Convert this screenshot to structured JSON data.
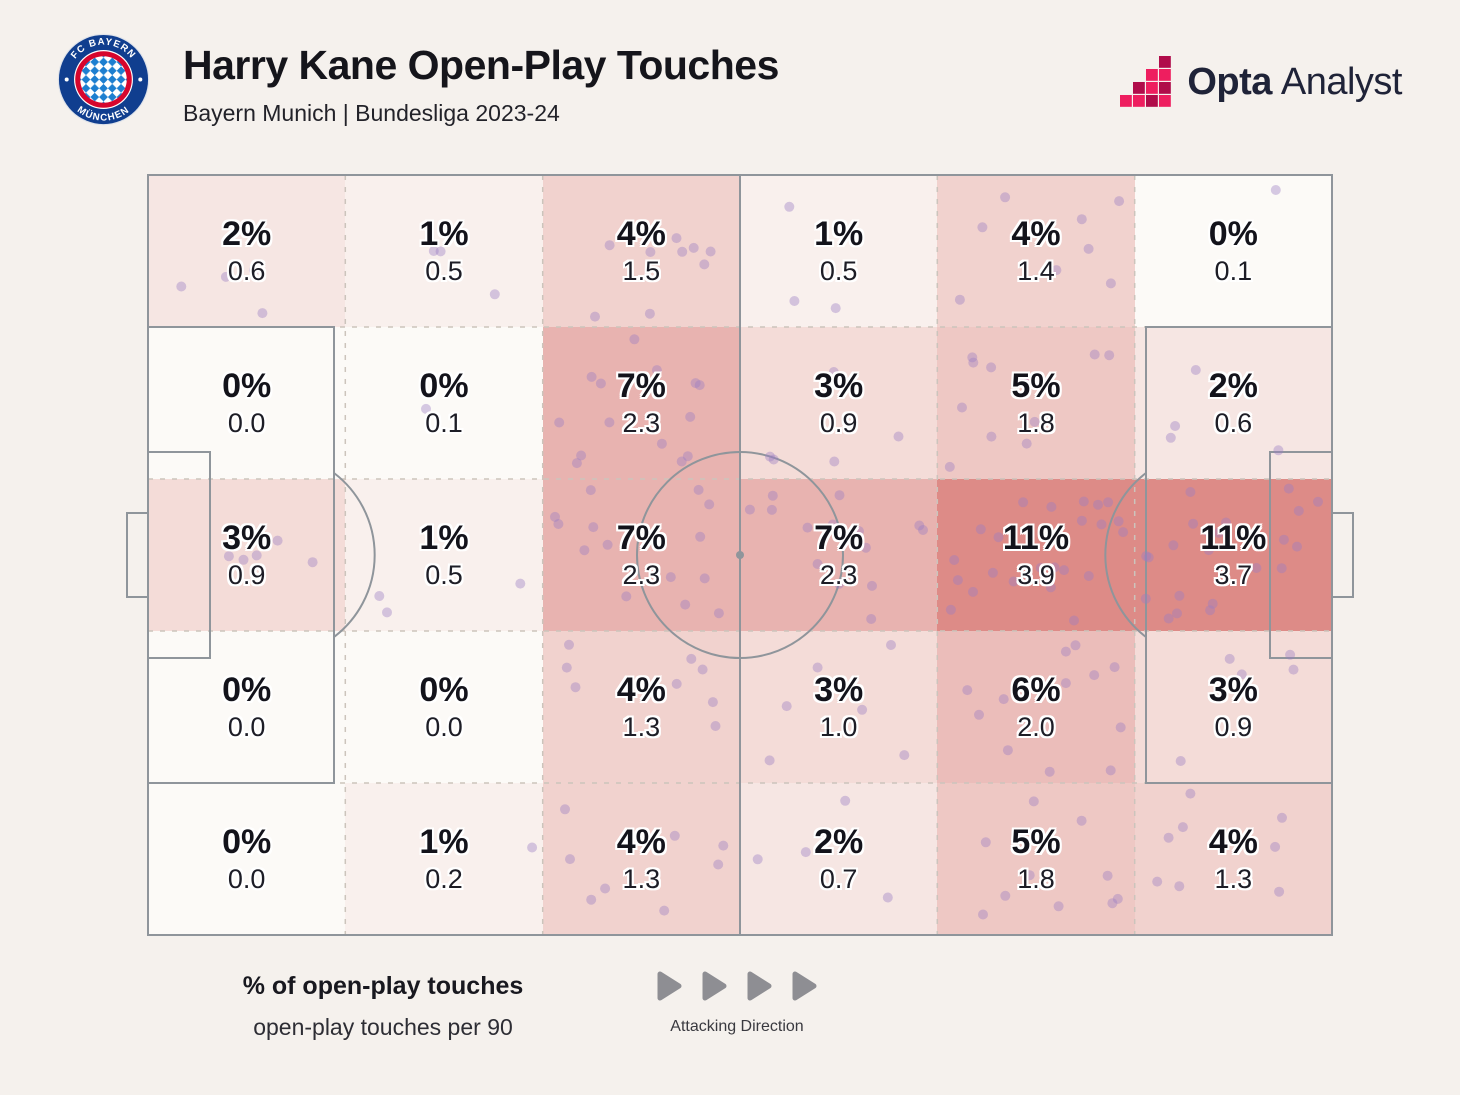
{
  "header": {
    "title": "Harry Kane Open-Play Touches",
    "subtitle": "Bayern Munich | Bundesliga 2023-24",
    "crest_top": "FC BAYERN",
    "crest_bottom": "MÜNCHEN",
    "brand_bold": "Opta",
    "brand_light": "Analyst"
  },
  "legend": {
    "line1": "% of open-play touches",
    "line2": "open-play touches per 90",
    "attacking_direction": "Attacking Direction"
  },
  "brand_colors": {
    "opta_pink": "#ee1e5f",
    "opta_crimson": "#b00c4a",
    "bayern_navy": "#103e8f",
    "bayern_red": "#d6062d",
    "bayern_blue": "#1d7fd0"
  },
  "chart_data": {
    "type": "heatmap",
    "title": "Harry Kane Open-Play Touches",
    "subtitle": "Bayern Munich | Bundesliga 2023-24",
    "orientation": "attacking left-to-right",
    "grid": {
      "columns": 6,
      "rows": 5
    },
    "value_unit": "% of open-play touches",
    "secondary_unit": "open-play touches per 90",
    "color_scale": {
      "min_value": 0,
      "max_value": 11,
      "min_color": "#fcfaf7",
      "max_color": "#dd8b87"
    },
    "dot_color": "#9b7cc4",
    "zones": [
      [
        {
          "pct": 2,
          "pct_label": "2%",
          "per90": 0.6,
          "per90_label": "0.6"
        },
        {
          "pct": 1,
          "pct_label": "1%",
          "per90": 0.5,
          "per90_label": "0.5"
        },
        {
          "pct": 4,
          "pct_label": "4%",
          "per90": 1.5,
          "per90_label": "1.5"
        },
        {
          "pct": 1,
          "pct_label": "1%",
          "per90": 0.5,
          "per90_label": "0.5"
        },
        {
          "pct": 4,
          "pct_label": "4%",
          "per90": 1.4,
          "per90_label": "1.4"
        },
        {
          "pct": 0,
          "pct_label": "0%",
          "per90": 0.1,
          "per90_label": "0.1"
        }
      ],
      [
        {
          "pct": 0,
          "pct_label": "0%",
          "per90": 0.0,
          "per90_label": "0.0"
        },
        {
          "pct": 0,
          "pct_label": "0%",
          "per90": 0.1,
          "per90_label": "0.1"
        },
        {
          "pct": 7,
          "pct_label": "7%",
          "per90": 2.3,
          "per90_label": "2.3"
        },
        {
          "pct": 3,
          "pct_label": "3%",
          "per90": 0.9,
          "per90_label": "0.9"
        },
        {
          "pct": 5,
          "pct_label": "5%",
          "per90": 1.8,
          "per90_label": "1.8"
        },
        {
          "pct": 2,
          "pct_label": "2%",
          "per90": 0.6,
          "per90_label": "0.6"
        }
      ],
      [
        {
          "pct": 3,
          "pct_label": "3%",
          "per90": 0.9,
          "per90_label": "0.9"
        },
        {
          "pct": 1,
          "pct_label": "1%",
          "per90": 0.5,
          "per90_label": "0.5"
        },
        {
          "pct": 7,
          "pct_label": "7%",
          "per90": 2.3,
          "per90_label": "2.3"
        },
        {
          "pct": 7,
          "pct_label": "7%",
          "per90": 2.3,
          "per90_label": "2.3"
        },
        {
          "pct": 11,
          "pct_label": "11%",
          "per90": 3.9,
          "per90_label": "3.9"
        },
        {
          "pct": 11,
          "pct_label": "11%",
          "per90": 3.7,
          "per90_label": "3.7"
        }
      ],
      [
        {
          "pct": 0,
          "pct_label": "0%",
          "per90": 0.0,
          "per90_label": "0.0"
        },
        {
          "pct": 0,
          "pct_label": "0%",
          "per90": 0.0,
          "per90_label": "0.0"
        },
        {
          "pct": 4,
          "pct_label": "4%",
          "per90": 1.3,
          "per90_label": "1.3"
        },
        {
          "pct": 3,
          "pct_label": "3%",
          "per90": 1.0,
          "per90_label": "1.0"
        },
        {
          "pct": 6,
          "pct_label": "6%",
          "per90": 2.0,
          "per90_label": "2.0"
        },
        {
          "pct": 3,
          "pct_label": "3%",
          "per90": 0.9,
          "per90_label": "0.9"
        }
      ],
      [
        {
          "pct": 0,
          "pct_label": "0%",
          "per90": 0.0,
          "per90_label": "0.0"
        },
        {
          "pct": 1,
          "pct_label": "1%",
          "per90": 0.2,
          "per90_label": "0.2"
        },
        {
          "pct": 4,
          "pct_label": "4%",
          "per90": 1.3,
          "per90_label": "1.3"
        },
        {
          "pct": 2,
          "pct_label": "2%",
          "per90": 0.7,
          "per90_label": "0.7"
        },
        {
          "pct": 5,
          "pct_label": "5%",
          "per90": 1.8,
          "per90_label": "1.8"
        },
        {
          "pct": 4,
          "pct_label": "4%",
          "per90": 1.3,
          "per90_label": "1.3"
        }
      ]
    ]
  }
}
